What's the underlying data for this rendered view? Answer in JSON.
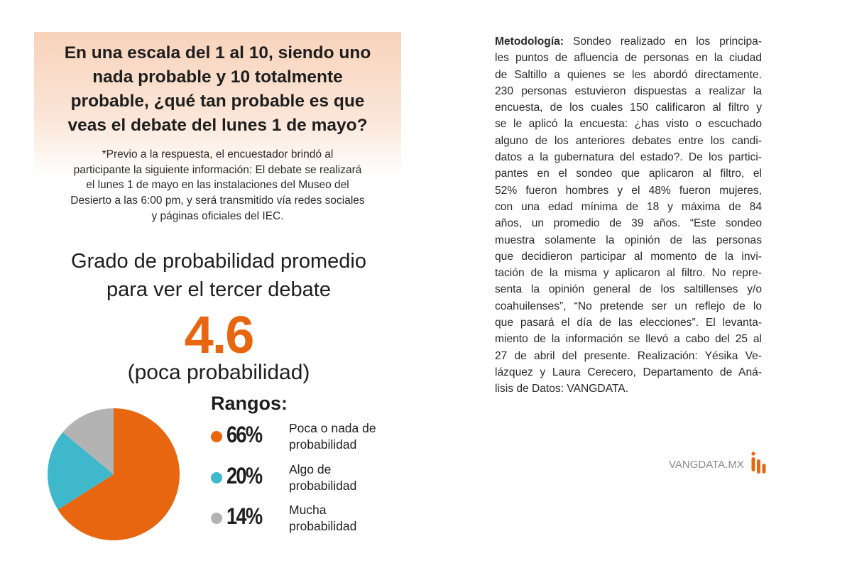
{
  "question": {
    "title_lines": [
      "En una escala del 1 al 10, siendo uno",
      "nada probable y 10 totalmente",
      "probable, ¿qué tan probable es que",
      "veas el debate del lunes 1 de mayo?"
    ],
    "note_lines": [
      "*Previo a la respuesta, el encuestador brindó al",
      "participante la siguiente información: El debate se realizará",
      "el lunes 1 de mayo en las instalaciones del Museo del",
      "Desierto a las 6:00 pm, y será transmitido vía redes sociales",
      "y páginas oficiales del IEC."
    ]
  },
  "summary": {
    "subtitle_lines": [
      "Grado de probabilidad promedio",
      "para ver el tercer debate"
    ],
    "average": "4.6",
    "average_label": "(poca probabilidad)"
  },
  "chart_data": {
    "type": "pie",
    "legend_title": "Rangos:",
    "legend_placement": "right",
    "slices": [
      {
        "label": "Poca o nada de probabilidad",
        "label_lines": [
          "Poca o nada de",
          "probabilidad"
        ],
        "value": 66,
        "display": "66%",
        "color": "#e8660f"
      },
      {
        "label": "Algo de probabilidad",
        "label_lines": [
          "Algo de",
          "probabilidad"
        ],
        "value": 20,
        "display": "20%",
        "color": "#3fb8cc"
      },
      {
        "label": "Mucha probabilidad",
        "label_lines": [
          "Mucha",
          "probabilidad"
        ],
        "value": 14,
        "display": "14%",
        "color": "#b3b3b3"
      }
    ]
  },
  "methodology": {
    "label": "Metodología:",
    "first_line_rest": " Sondeo realizado en los principa-",
    "lines": [
      "les puntos de afluencia de personas en la ciudad",
      "de Saltillo a quienes se les abordó directamente.",
      "230 personas estuvieron dispuestas a realizar la",
      "encuesta, de los cuales 150 calificaron al filtro y",
      "se le aplicó la encuesta: ¿has visto o escuchado",
      "alguno de los anteriores debates entre los candi-",
      "datos a la gubernatura del estado?. De los partici-",
      "pantes en el sondeo que aplicaron al filtro, el",
      "52% fueron hombres y el 48% fueron mujeres,",
      "con una edad mínima de 18 y máxima de 84",
      "años, un promedio de 39 años. “Este sondeo",
      "muestra solamente la opinión de las personas",
      "que decidieron participar al momento de la invi-",
      "tación de la misma y aplicaron al filtro. No repre-",
      "senta la opinión general de los saltillenses y/o",
      "coahuilenses”, “No pretende ser un reflejo de lo",
      "que pasará el día de las elecciones”. El levanta-",
      "miento de la información se llevó a cabo del 25 al",
      "27 de abril  del presente. Realización: Yésika Ve-",
      "lázquez y Laura Cerecero, Departamento de Aná-",
      "lisis de Datos: VANGDATA."
    ]
  },
  "footer": {
    "brand": "VANGDATA.MX",
    "logo_color": "#e8660f"
  }
}
